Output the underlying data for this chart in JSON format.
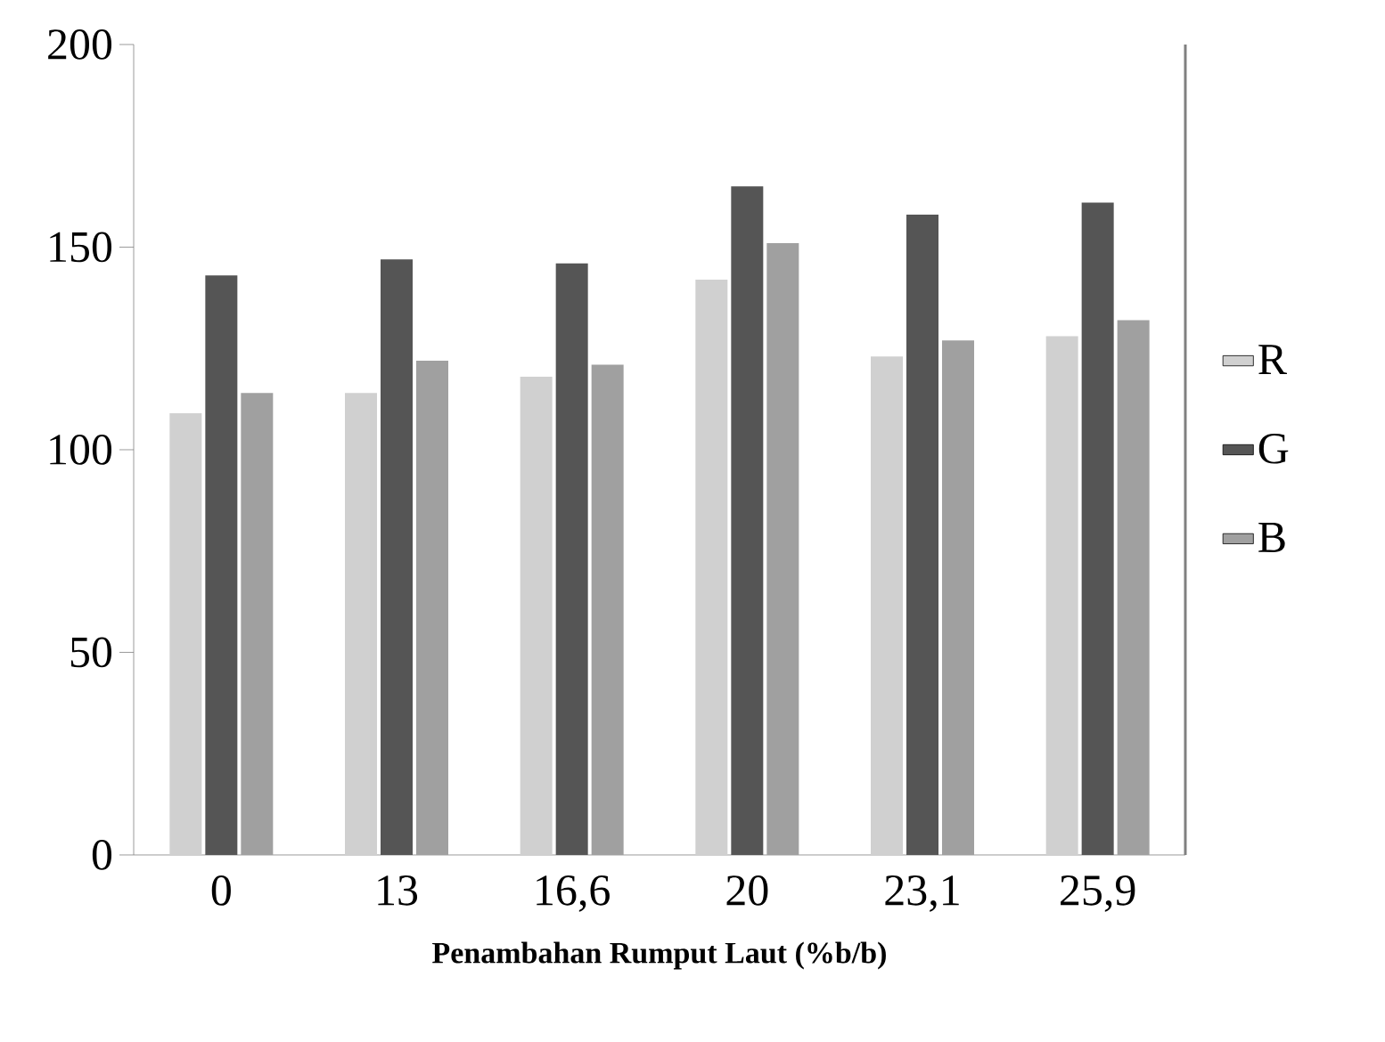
{
  "chart_data": {
    "type": "bar",
    "xlabel": "Penambahan Rumput Laut (%b/b)",
    "categories": [
      "0",
      "13",
      "16,6",
      "20",
      "23,1",
      "25,9"
    ],
    "series": [
      {
        "name": "R",
        "color": "#d0d0d0",
        "values": [
          109,
          114,
          118,
          142,
          123,
          128
        ]
      },
      {
        "name": "G",
        "color": "#555555",
        "values": [
          143,
          147,
          146,
          165,
          158,
          161
        ]
      },
      {
        "name": "B",
        "color": "#a0a0a0",
        "values": [
          114,
          122,
          121,
          151,
          127,
          132
        ]
      }
    ],
    "ylim": [
      0,
      200
    ],
    "yticks": [
      0,
      50,
      100,
      150,
      200
    ],
    "grid": false,
    "legend": "right"
  }
}
